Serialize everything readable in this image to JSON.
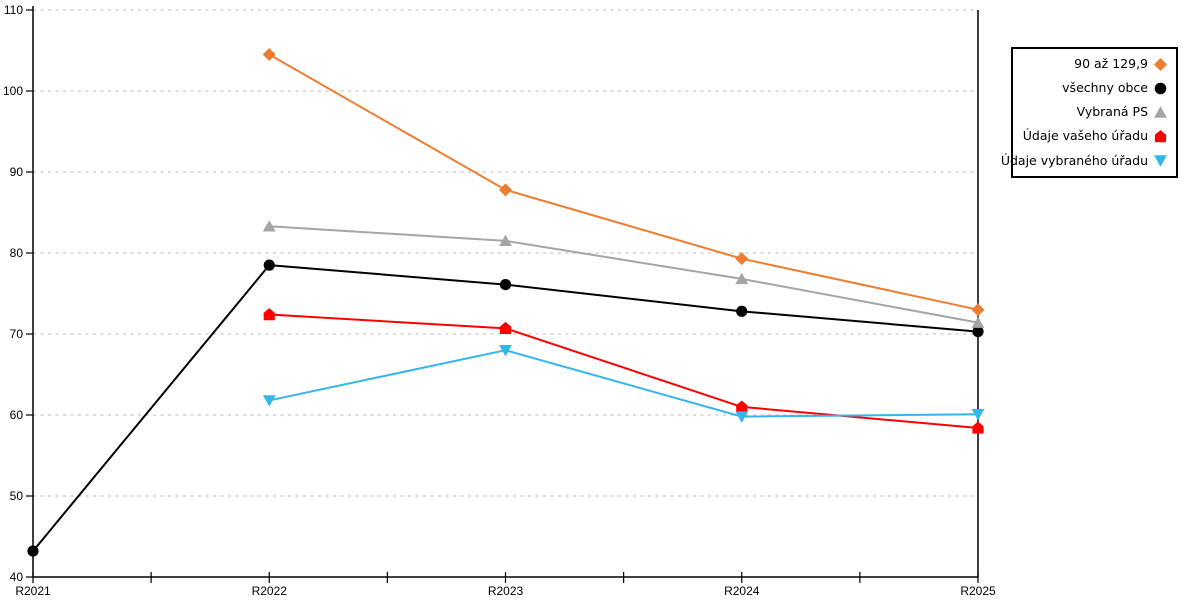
{
  "chart_data": {
    "type": "line",
    "title": "",
    "xlabel": "",
    "ylabel": "",
    "categories": [
      "R2021",
      "R2022",
      "R2023",
      "R2024",
      "R2025"
    ],
    "ylim": [
      40,
      110
    ],
    "ytick_step": 10,
    "ytick_labels": [
      "40",
      "50",
      "60",
      "70",
      "80",
      "90",
      "100",
      "110"
    ],
    "grid": "horizontal-dashed",
    "legend_position": "right-outside-boxed",
    "right_border_at_last_category": true,
    "series": [
      {
        "name": "90 až 129,9",
        "marker": "diamond",
        "color": "#ED7D31",
        "values": [
          null,
          104.5,
          87.8,
          79.3,
          73.0
        ]
      },
      {
        "name": "všechny obce",
        "marker": "circle",
        "color": "#000000",
        "values": [
          43.2,
          78.5,
          76.1,
          72.8,
          70.3
        ]
      },
      {
        "name": "Vybraná PS",
        "marker": "triangle-up",
        "color": "#A5A5A5",
        "values": [
          null,
          83.3,
          81.5,
          76.8,
          71.4
        ]
      },
      {
        "name": "Údaje vašeho úřadu",
        "marker": "house",
        "color": "#FF0000",
        "values": [
          null,
          72.4,
          70.7,
          61.0,
          58.4
        ]
      },
      {
        "name": "Údaje vybraného úřadu",
        "marker": "triangle-down",
        "color": "#35B6EA",
        "values": [
          null,
          61.8,
          68.0,
          59.8,
          60.1
        ]
      }
    ]
  },
  "colors": {
    "background": "#ffffff",
    "axis": "#000000",
    "grid": "#c8c8c8",
    "legend_border": "#000000",
    "text": "#000000"
  }
}
